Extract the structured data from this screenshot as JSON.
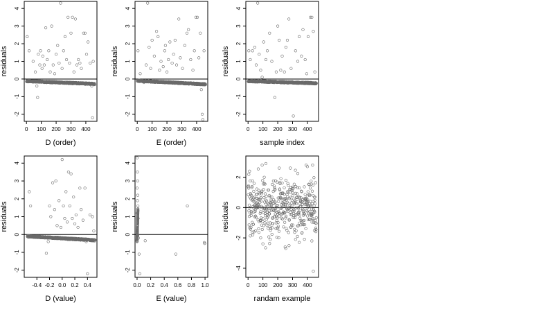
{
  "colors": {
    "points": "#6a6a6a",
    "frame": "#000000",
    "background": "#ffffff"
  },
  "chart_data": [
    {
      "type": "scatter",
      "xlabel": "D (order)",
      "ylabel": "residuals",
      "xlim": [
        -15,
        475
      ],
      "ylim": [
        -2.4,
        4.4
      ],
      "xticks": [
        0,
        100,
        200,
        300,
        400
      ],
      "yticks": [
        -2,
        -1,
        0,
        1,
        2,
        3,
        4
      ],
      "reference_line_y": 0,
      "points": {
        "residual_band": {
          "n": 460,
          "x_range": [
            1,
            460
          ],
          "y_start": -0.12,
          "y_end": -0.28
        },
        "scattered": [
          [
            5,
            2.4
          ],
          [
            18,
            1.6
          ],
          [
            45,
            1.0
          ],
          [
            60,
            0.4
          ],
          [
            70,
            -0.4
          ],
          [
            75,
            -1.05
          ],
          [
            80,
            1.4
          ],
          [
            90,
            0.8
          ],
          [
            95,
            1.6
          ],
          [
            105,
            0.6
          ],
          [
            110,
            1.3
          ],
          [
            120,
            0.8
          ],
          [
            130,
            2.9
          ],
          [
            140,
            1.1
          ],
          [
            150,
            1.6
          ],
          [
            160,
            0.4
          ],
          [
            170,
            3.0
          ],
          [
            180,
            0.8
          ],
          [
            190,
            0.3
          ],
          [
            200,
            1.4
          ],
          [
            210,
            1.9
          ],
          [
            220,
            0.9
          ],
          [
            230,
            4.3
          ],
          [
            240,
            0.6
          ],
          [
            250,
            1.6
          ],
          [
            260,
            2.4
          ],
          [
            270,
            1.1
          ],
          [
            280,
            3.5
          ],
          [
            290,
            0.9
          ],
          [
            300,
            2.6
          ],
          [
            310,
            3.5
          ],
          [
            320,
            0.4
          ],
          [
            330,
            3.4
          ],
          [
            340,
            0.8
          ],
          [
            350,
            1.1
          ],
          [
            360,
            0.9
          ],
          [
            370,
            0.6
          ],
          [
            385,
            2.6
          ],
          [
            395,
            2.6
          ],
          [
            405,
            1.4
          ],
          [
            415,
            2.1
          ],
          [
            430,
            0.9
          ],
          [
            440,
            -0.4
          ],
          [
            445,
            -2.2
          ],
          [
            450,
            1.0
          ]
        ]
      }
    },
    {
      "type": "scatter",
      "xlabel": "E (order)",
      "ylabel": "residuals",
      "xlim": [
        -15,
        475
      ],
      "ylim": [
        -2.4,
        4.4
      ],
      "xticks": [
        0,
        100,
        200,
        300,
        400
      ],
      "yticks": [
        -2,
        -1,
        0,
        1,
        2,
        3,
        4
      ],
      "reference_line_y": 0,
      "points": {
        "residual_band": {
          "n": 460,
          "x_range": [
            1,
            460
          ],
          "y_start": -0.1,
          "y_end": -0.3
        },
        "scattered": [
          [
            5,
            1.6
          ],
          [
            20,
            0.3
          ],
          [
            45,
            -0.2
          ],
          [
            60,
            0.8
          ],
          [
            70,
            4.3
          ],
          [
            80,
            1.8
          ],
          [
            90,
            0.6
          ],
          [
            100,
            2.2
          ],
          [
            115,
            1.3
          ],
          [
            130,
            2.7
          ],
          [
            140,
            2.4
          ],
          [
            150,
            0.5
          ],
          [
            160,
            1.0
          ],
          [
            175,
            0.7
          ],
          [
            185,
            1.6
          ],
          [
            190,
            1.9
          ],
          [
            200,
            0.4
          ],
          [
            210,
            1.1
          ],
          [
            220,
            2.1
          ],
          [
            235,
            0.9
          ],
          [
            245,
            1.4
          ],
          [
            255,
            2.2
          ],
          [
            265,
            0.8
          ],
          [
            280,
            3.4
          ],
          [
            290,
            1.2
          ],
          [
            305,
            0.6
          ],
          [
            320,
            1.9
          ],
          [
            335,
            2.6
          ],
          [
            345,
            2.8
          ],
          [
            360,
            1.1
          ],
          [
            375,
            0.5
          ],
          [
            385,
            1.6
          ],
          [
            395,
            3.5
          ],
          [
            405,
            3.5
          ],
          [
            415,
            1.2
          ],
          [
            425,
            2.6
          ],
          [
            432,
            -0.6
          ],
          [
            438,
            -2.0
          ],
          [
            442,
            -2.3
          ],
          [
            450,
            1.6
          ]
        ]
      }
    },
    {
      "type": "scatter",
      "xlabel": "sample index",
      "ylabel": "residuals",
      "xlim": [
        -15,
        475
      ],
      "ylim": [
        -2.4,
        4.4
      ],
      "xticks": [
        0,
        100,
        200,
        300,
        400
      ],
      "yticks": [
        -2,
        -1,
        0,
        1,
        2,
        3,
        4
      ],
      "reference_line_y": 0,
      "points": {
        "residual_band": {
          "n": 460,
          "x_range": [
            1,
            460
          ],
          "y_start": -0.12,
          "y_end": -0.24
        },
        "scattered": [
          [
            5,
            1.6
          ],
          [
            15,
            1.1
          ],
          [
            30,
            1.6
          ],
          [
            45,
            1.8
          ],
          [
            55,
            0.8
          ],
          [
            65,
            4.3
          ],
          [
            75,
            1.4
          ],
          [
            85,
            0.5
          ],
          [
            95,
            0.1
          ],
          [
            105,
            2.1
          ],
          [
            120,
            1.1
          ],
          [
            130,
            1.6
          ],
          [
            145,
            2.6
          ],
          [
            160,
            1.0
          ],
          [
            170,
            -0.2
          ],
          [
            180,
            -1.05
          ],
          [
            190,
            0.4
          ],
          [
            200,
            3.0
          ],
          [
            210,
            2.2
          ],
          [
            220,
            0.5
          ],
          [
            230,
            1.3
          ],
          [
            245,
            0.4
          ],
          [
            255,
            1.8
          ],
          [
            265,
            2.2
          ],
          [
            275,
            3.4
          ],
          [
            290,
            0.6
          ],
          [
            305,
            -2.1
          ],
          [
            320,
            1.6
          ],
          [
            335,
            1.0
          ],
          [
            345,
            2.4
          ],
          [
            360,
            1.3
          ],
          [
            370,
            2.8
          ],
          [
            385,
            1.1
          ],
          [
            395,
            0.3
          ],
          [
            405,
            2.4
          ],
          [
            420,
            3.5
          ],
          [
            430,
            3.5
          ],
          [
            440,
            2.7
          ],
          [
            450,
            0.4
          ]
        ]
      }
    },
    {
      "type": "scatter",
      "xlabel": "D (value)",
      "ylabel": "residuals",
      "xlim": [
        -0.6,
        0.55
      ],
      "ylim": [
        -2.4,
        4.4
      ],
      "xticks": [
        -0.4,
        -0.2,
        0.0,
        0.2,
        0.4
      ],
      "xtick_labels": [
        "-0.4",
        "-0.2",
        "0.0",
        "0.2",
        "0.4"
      ],
      "yticks": [
        -2,
        -1,
        0,
        1,
        2,
        3,
        4
      ],
      "reference_line_y": 0,
      "points": {
        "residual_band": {
          "n": 460,
          "x_range": [
            -0.55,
            0.52
          ],
          "y_start": -0.1,
          "y_end": -0.32
        },
        "scattered": [
          [
            -0.52,
            2.4
          ],
          [
            -0.5,
            1.6
          ],
          [
            -0.25,
            -1.05
          ],
          [
            -0.22,
            -0.4
          ],
          [
            -0.2,
            1.6
          ],
          [
            -0.18,
            1.0
          ],
          [
            -0.15,
            2.9
          ],
          [
            -0.12,
            1.4
          ],
          [
            -0.1,
            3.0
          ],
          [
            -0.08,
            0.5
          ],
          [
            -0.05,
            1.9
          ],
          [
            -0.02,
            0.4
          ],
          [
            0.0,
            4.2
          ],
          [
            0.02,
            1.6
          ],
          [
            0.04,
            0.9
          ],
          [
            0.06,
            2.4
          ],
          [
            0.08,
            0.7
          ],
          [
            0.1,
            3.5
          ],
          [
            0.12,
            1.6
          ],
          [
            0.14,
            3.4
          ],
          [
            0.16,
            0.9
          ],
          [
            0.18,
            2.1
          ],
          [
            0.2,
            0.6
          ],
          [
            0.22,
            1.1
          ],
          [
            0.25,
            0.4
          ],
          [
            0.28,
            2.6
          ],
          [
            0.3,
            1.4
          ],
          [
            0.33,
            0.8
          ],
          [
            0.36,
            2.6
          ],
          [
            0.38,
            -0.4
          ],
          [
            0.4,
            -2.2
          ],
          [
            0.44,
            1.1
          ],
          [
            0.48,
            1.0
          ],
          [
            0.5,
            0.2
          ]
        ]
      }
    },
    {
      "type": "scatter",
      "xlabel": "E (value)",
      "ylabel": "residuals",
      "xlim": [
        -0.03,
        1.04
      ],
      "ylim": [
        -2.4,
        4.4
      ],
      "xticks": [
        0.0,
        0.2,
        0.4,
        0.6,
        0.8,
        1.0
      ],
      "xtick_labels": [
        "0.0",
        "0.2",
        "0.4",
        "0.6",
        "0.8",
        "1.0"
      ],
      "yticks": [
        -2,
        -1,
        0,
        1,
        2,
        3,
        4
      ],
      "reference_line_y": 0,
      "points": {
        "residual_band": {
          "n": 120,
          "x_range": [
            0.0,
            0.012
          ],
          "y_start": -0.35,
          "y_end": 1.4
        },
        "scattered": [
          [
            0.0,
            4.3
          ],
          [
            0.005,
            3.5
          ],
          [
            0.008,
            3.0
          ],
          [
            0.0,
            2.6
          ],
          [
            0.01,
            2.2
          ],
          [
            0.005,
            1.9
          ],
          [
            0.012,
            1.6
          ],
          [
            0.0,
            1.2
          ],
          [
            0.015,
            0.9
          ],
          [
            0.008,
            0.6
          ],
          [
            0.004,
            0.3
          ],
          [
            0.01,
            -0.05
          ],
          [
            0.02,
            -0.2
          ],
          [
            0.0,
            -0.4
          ],
          [
            0.03,
            -1.1
          ],
          [
            0.04,
            -2.2
          ],
          [
            0.12,
            -0.35
          ],
          [
            0.57,
            -1.1
          ],
          [
            0.74,
            1.6
          ],
          [
            0.99,
            -0.45
          ],
          [
            0.995,
            -0.5
          ]
        ]
      }
    },
    {
      "type": "scatter",
      "xlabel": "randam example",
      "ylabel": "residuals",
      "xlim": [
        -15,
        475
      ],
      "ylim": [
        -4.6,
        3.4
      ],
      "xticks": [
        0,
        100,
        200,
        300,
        400
      ],
      "yticks": [
        -4,
        -2,
        0,
        2
      ],
      "reference_line_y": 0,
      "points": {
        "random_cloud": {
          "n": 460,
          "x_range": [
            1,
            460
          ],
          "sd": 0.95,
          "seed": 7
        },
        "scattered": [
          [
            10,
            2.4
          ],
          [
            40,
            -1.6
          ],
          [
            85,
            -2.0
          ],
          [
            120,
            2.9
          ],
          [
            150,
            -2.1
          ],
          [
            210,
            2.6
          ],
          [
            250,
            -2.6
          ],
          [
            285,
            2.6
          ],
          [
            320,
            -2.1
          ],
          [
            345,
            -2.3
          ],
          [
            400,
            2.7
          ],
          [
            430,
            -2.2
          ],
          [
            440,
            -4.2
          ]
        ]
      }
    }
  ]
}
